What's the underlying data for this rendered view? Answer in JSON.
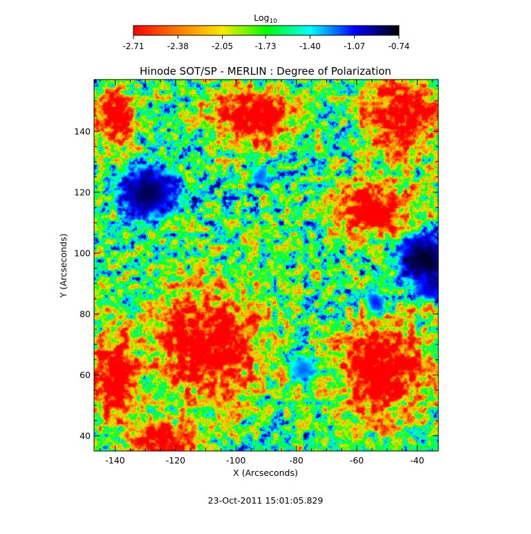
{
  "chart_data": {
    "type": "heatmap",
    "title": "Hinode SOT/SP - MERLIN : Degree of Polarization",
    "xlabel": "X (Arcseconds)",
    "ylabel": "Y (Arcseconds)",
    "xlim": [
      -147,
      -33
    ],
    "ylim": [
      35,
      157
    ],
    "x_ticks": [
      "-140",
      "-120",
      "-100",
      "-80",
      "-60",
      "-40"
    ],
    "x_tick_values": [
      -140,
      -120,
      -100,
      -80,
      -60,
      -40
    ],
    "y_ticks": [
      "40",
      "60",
      "80",
      "100",
      "120",
      "140"
    ],
    "y_tick_values": [
      40,
      60,
      80,
      100,
      120,
      140
    ],
    "colorbar": {
      "title": "Log",
      "title_subscript": "10",
      "range": [
        -2.71,
        -0.74
      ],
      "tick_labels": [
        "-2.71",
        "-2.38",
        "-2.05",
        "-1.73",
        "-1.40",
        "-1.07",
        "-0.74"
      ],
      "tick_values": [
        -2.71,
        -2.38,
        -2.05,
        -1.73,
        -1.4,
        -1.07,
        -0.74
      ],
      "colormap": [
        "#ff0000",
        "#ff7a00",
        "#ffe800",
        "#00ff00",
        "#00ffff",
        "#0000ff",
        "#000000"
      ]
    },
    "spots": [
      {
        "x": -129,
        "y": 120,
        "rx": 9,
        "ry": 8,
        "level": -0.85
      },
      {
        "x": -38,
        "y": 98,
        "rx": 8,
        "ry": 8,
        "level": -0.8
      },
      {
        "x": -36,
        "y": 88,
        "rx": 3,
        "ry": 3,
        "level": -1.0
      },
      {
        "x": -54,
        "y": 84,
        "rx": 3,
        "ry": 3,
        "level": -1.1
      },
      {
        "x": -78,
        "y": 62,
        "rx": 4,
        "ry": 4,
        "level": -1.2
      },
      {
        "x": -92,
        "y": 125,
        "rx": 3,
        "ry": 3,
        "level": -1.2
      }
    ],
    "quiet_regions": [
      {
        "x": -110,
        "y": 70,
        "rx": 20,
        "ry": 20
      },
      {
        "x": -140,
        "y": 60,
        "rx": 8,
        "ry": 16
      },
      {
        "x": -95,
        "y": 145,
        "rx": 14,
        "ry": 11
      },
      {
        "x": -45,
        "y": 145,
        "rx": 14,
        "ry": 13
      },
      {
        "x": -55,
        "y": 115,
        "rx": 14,
        "ry": 10
      },
      {
        "x": -52,
        "y": 62,
        "rx": 16,
        "ry": 18
      },
      {
        "x": -125,
        "y": 38,
        "rx": 12,
        "ry": 8
      },
      {
        "x": -140,
        "y": 145,
        "rx": 7,
        "ry": 10
      }
    ],
    "plage_network_level": -1.3
  },
  "footer": {
    "timestamp": "23-Oct-2011 15:01:05.829"
  }
}
